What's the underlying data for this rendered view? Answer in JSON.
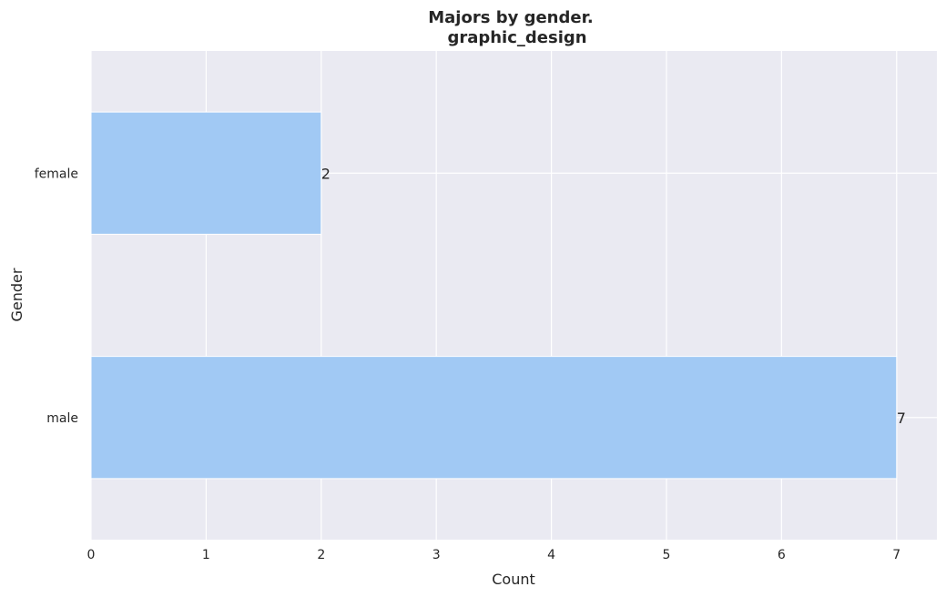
{
  "chart_data": {
    "type": "bar",
    "orientation": "horizontal",
    "title_line1": "Majors by gender.",
    "title_line2": "graphic_design",
    "xlabel": "Count",
    "ylabel": "Gender",
    "categories": [
      "female",
      "male"
    ],
    "values": [
      2,
      7
    ],
    "data_labels": [
      "2",
      "7"
    ],
    "xlim": [
      0,
      7.35
    ],
    "xticks": [
      0,
      1,
      2,
      3,
      4,
      5,
      6,
      7
    ],
    "grid": true,
    "legend": "none",
    "colors": {
      "bar": "#a1c9f4",
      "plot_background": "#eaeaf2",
      "grid": "#ffffff",
      "text": "#262626"
    }
  }
}
